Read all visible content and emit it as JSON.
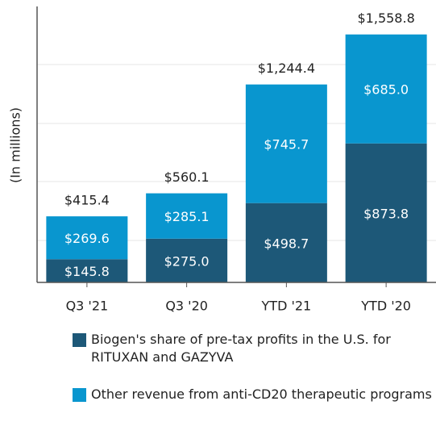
{
  "chart_data": {
    "type": "stacked-bar",
    "y_label": "(In millions)",
    "categories": [
      "Q3 '21",
      "Q3 '20",
      "YTD '21",
      "YTD '20"
    ],
    "series": [
      {
        "name": "Biogen's share of pre-tax profits in the U.S. for RITUXAN and GAZYVA",
        "color": "#1d5878",
        "values": [
          145.8,
          275.0,
          498.7,
          873.8
        ],
        "value_labels": [
          "$145.8",
          "$275.0",
          "$498.7",
          "$873.8"
        ]
      },
      {
        "name": "Other revenue from anti-CD20 therapeutic programs",
        "color": "#0996cf",
        "values": [
          269.6,
          285.1,
          745.7,
          685.0
        ],
        "value_labels": [
          "$269.6",
          "$285.1",
          "$745.7",
          "$685.0"
        ]
      }
    ],
    "totals": [
      415.4,
      560.1,
      1244.4,
      1558.8
    ],
    "total_labels": [
      "$415.4",
      "$560.1",
      "$1,244.4",
      "$1,558.8"
    ],
    "ylim": [
      0,
      1750
    ]
  }
}
